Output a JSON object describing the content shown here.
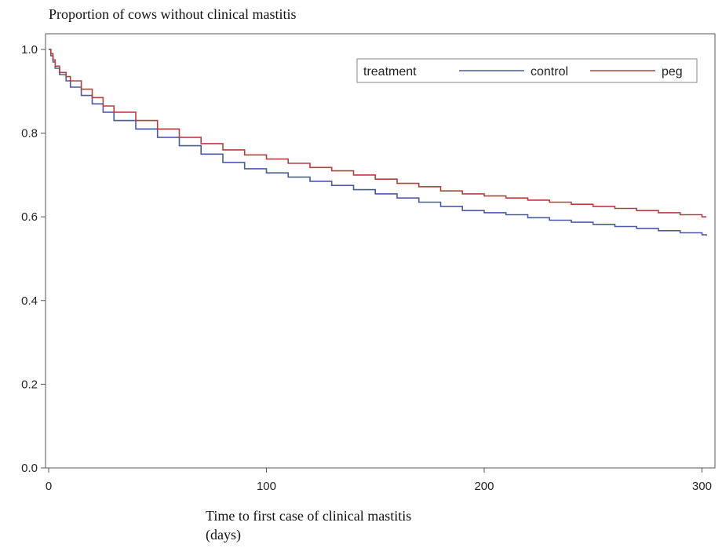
{
  "chart_data": {
    "type": "line",
    "title": "",
    "ylabel": "Proportion of cows without clinical mastitis",
    "xlabel_line1": "Time to first case of clinical mastitis",
    "xlabel_line2": "(days)",
    "xlim": [
      0,
      302
    ],
    "ylim": [
      0.0,
      1.0
    ],
    "x_ticks": [
      0,
      100,
      200,
      300
    ],
    "x_tick_labels": [
      "0",
      "100",
      "200",
      "300"
    ],
    "y_ticks": [
      0.0,
      0.2,
      0.4,
      0.6,
      0.8,
      1.0
    ],
    "y_tick_labels": [
      "0.0",
      "0.2",
      "0.4",
      "0.6",
      "0.8",
      "1.0"
    ],
    "grid": false,
    "legend": {
      "title": "treatment",
      "placement": "top-right"
    },
    "series": [
      {
        "name": "control",
        "color": "#4a5aa0",
        "x": [
          0,
          1,
          2,
          3,
          5,
          8,
          10,
          15,
          20,
          25,
          30,
          40,
          50,
          60,
          70,
          80,
          90,
          100,
          110,
          120,
          130,
          140,
          150,
          160,
          170,
          180,
          190,
          200,
          210,
          220,
          230,
          240,
          250,
          260,
          270,
          280,
          290,
          300,
          302
        ],
        "y": [
          1.0,
          0.985,
          0.97,
          0.955,
          0.94,
          0.925,
          0.91,
          0.89,
          0.87,
          0.85,
          0.83,
          0.81,
          0.79,
          0.77,
          0.75,
          0.73,
          0.715,
          0.705,
          0.695,
          0.685,
          0.675,
          0.665,
          0.655,
          0.645,
          0.635,
          0.625,
          0.615,
          0.61,
          0.605,
          0.598,
          0.592,
          0.587,
          0.582,
          0.577,
          0.572,
          0.567,
          0.562,
          0.557,
          0.555
        ]
      },
      {
        "name": "peg",
        "color": "#b0413e",
        "x": [
          0,
          1,
          2,
          3,
          5,
          8,
          10,
          15,
          20,
          25,
          30,
          40,
          50,
          60,
          70,
          80,
          90,
          100,
          110,
          120,
          130,
          140,
          150,
          160,
          170,
          180,
          190,
          200,
          210,
          220,
          230,
          240,
          250,
          260,
          270,
          280,
          290,
          300,
          302
        ],
        "y": [
          1.0,
          0.99,
          0.975,
          0.96,
          0.945,
          0.935,
          0.925,
          0.905,
          0.885,
          0.865,
          0.85,
          0.83,
          0.81,
          0.79,
          0.775,
          0.76,
          0.748,
          0.738,
          0.728,
          0.718,
          0.71,
          0.7,
          0.69,
          0.68,
          0.672,
          0.662,
          0.655,
          0.65,
          0.645,
          0.64,
          0.635,
          0.63,
          0.625,
          0.62,
          0.615,
          0.61,
          0.605,
          0.6,
          0.6
        ]
      }
    ]
  }
}
